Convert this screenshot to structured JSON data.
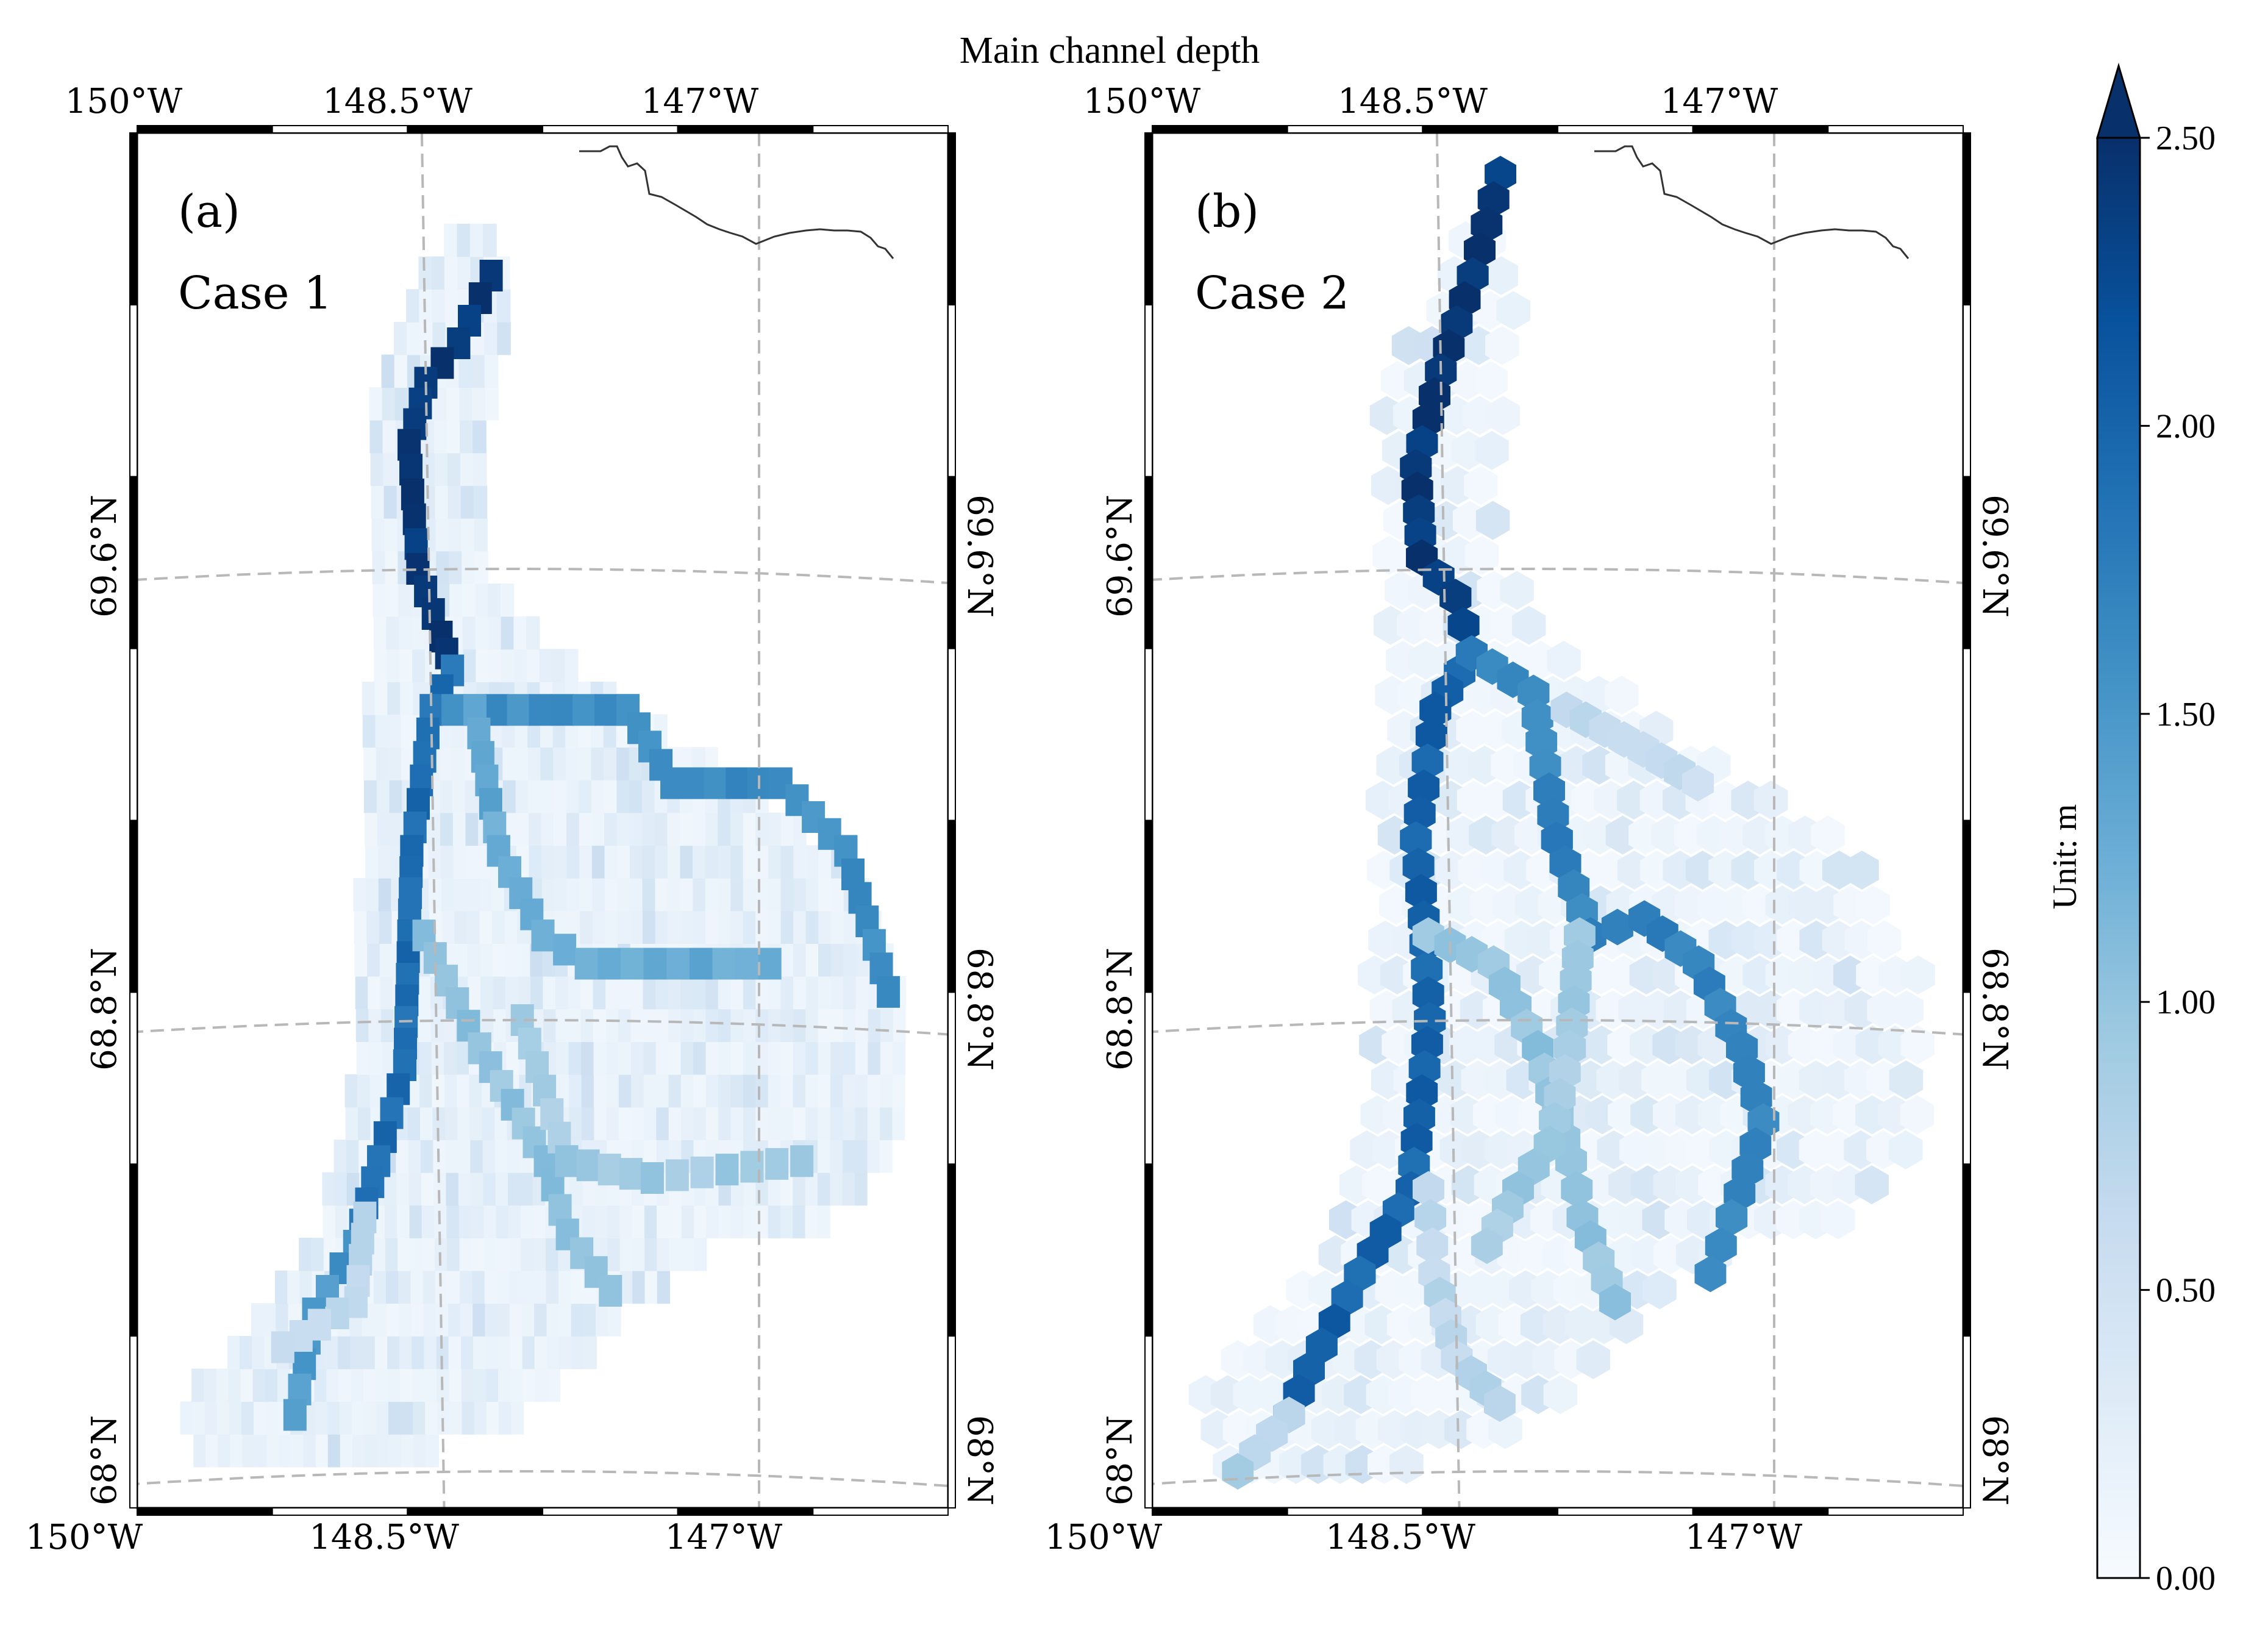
{
  "figure": {
    "title": "Main channel depth"
  },
  "colors": {
    "cmap": [
      "#f7fbff",
      "#deebf7",
      "#c6dbef",
      "#9ecae1",
      "#6baed6",
      "#4292c6",
      "#2171b5",
      "#08519c",
      "#08306b"
    ],
    "grid": "#b8b8b8",
    "coast": "#333333",
    "frame": "#000000"
  },
  "chart_data": [
    {
      "type": "heatmap",
      "panel_label": "(a)",
      "case_label": "Case 1",
      "cell_shape": "square",
      "x_axis": {
        "ticks_top": [
          "150°W",
          "148.5°W",
          "147°W"
        ],
        "ticks_bottom": [
          "150°W",
          "148.5°W",
          "147°W"
        ]
      },
      "y_axis": {
        "ticks_left": [
          "68°N",
          "68.8°N",
          "69.6°N"
        ],
        "ticks_right": [
          "68°N",
          "68.8°N",
          "69.6°N"
        ]
      },
      "channels": [
        {
          "depth": 2.4,
          "path": [
            [
              -148.2,
              70.12
            ],
            [
              -148.35,
              70.0
            ],
            [
              -148.5,
              69.93
            ],
            [
              -148.58,
              69.82
            ],
            [
              -148.55,
              69.6
            ],
            [
              -148.45,
              69.48
            ],
            [
              -148.4,
              69.42
            ]
          ]
        },
        {
          "depth": 1.9,
          "path": [
            [
              -148.4,
              69.42
            ],
            [
              -148.5,
              69.35
            ],
            [
              -148.6,
              69.1
            ],
            [
              -148.62,
              68.95
            ],
            [
              -148.65,
              68.72
            ],
            [
              -148.78,
              68.55
            ],
            [
              -148.9,
              68.4
            ]
          ]
        },
        {
          "depth": 1.5,
          "path": [
            [
              -148.9,
              68.4
            ],
            [
              -149.1,
              68.28
            ],
            [
              -149.2,
              68.1
            ]
          ]
        },
        {
          "depth": 1.6,
          "path": [
            [
              -148.4,
              69.35
            ],
            [
              -147.6,
              69.35
            ],
            [
              -147.4,
              69.22
            ],
            [
              -146.9,
              69.22
            ],
            [
              -146.6,
              69.1
            ],
            [
              -146.4,
              68.85
            ]
          ]
        },
        {
          "depth": 1.3,
          "path": [
            [
              -148.3,
              69.35
            ],
            [
              -148.2,
              69.1
            ],
            [
              -148.0,
              68.95
            ],
            [
              -147.8,
              68.9
            ],
            [
              -146.95,
              68.9
            ]
          ]
        },
        {
          "depth": 1.0,
          "path": [
            [
              -148.55,
              68.95
            ],
            [
              -148.3,
              68.75
            ],
            [
              -148.0,
              68.55
            ],
            [
              -147.9,
              68.42
            ],
            [
              -147.7,
              68.32
            ]
          ]
        },
        {
          "depth": 0.9,
          "path": [
            [
              -148.1,
              68.8
            ],
            [
              -147.9,
              68.55
            ],
            [
              -147.5,
              68.52
            ],
            [
              -146.8,
              68.55
            ]
          ]
        },
        {
          "depth": 0.7,
          "path": [
            [
              -148.85,
              68.45
            ],
            [
              -148.9,
              68.3
            ],
            [
              -149.25,
              68.22
            ]
          ]
        }
      ],
      "background_depth_range": [
        0.1,
        0.6
      ]
    },
    {
      "type": "heatmap",
      "panel_label": "(b)",
      "case_label": "Case 2",
      "cell_shape": "hexagon",
      "x_axis": {
        "ticks_top": [
          "150°W",
          "148.5°W",
          "147°W"
        ],
        "ticks_bottom": [
          "150°W",
          "148.5°W",
          "147°W"
        ]
      },
      "y_axis": {
        "ticks_left": [
          "68°N",
          "68.8°N",
          "69.6°N"
        ],
        "ticks_right": [
          "68°N",
          "68.8°N",
          "69.6°N"
        ]
      },
      "channels": [
        {
          "depth": 2.4,
          "path": [
            [
              -148.22,
              70.3
            ],
            [
              -148.35,
              70.12
            ],
            [
              -148.5,
              69.95
            ],
            [
              -148.62,
              69.78
            ],
            [
              -148.6,
              69.62
            ],
            [
              -148.45,
              69.55
            ],
            [
              -148.38,
              69.45
            ]
          ]
        },
        {
          "depth": 2.0,
          "path": [
            [
              -148.38,
              69.45
            ],
            [
              -148.55,
              69.35
            ],
            [
              -148.65,
              69.12
            ],
            [
              -148.62,
              68.98
            ],
            [
              -148.6,
              68.8
            ],
            [
              -148.7,
              68.5
            ],
            [
              -148.95,
              68.35
            ],
            [
              -149.2,
              68.18
            ],
            [
              -149.3,
              68.1
            ]
          ]
        },
        {
          "depth": 1.7,
          "path": [
            [
              -148.38,
              69.45
            ],
            [
              -148.1,
              69.38
            ],
            [
              -148.0,
              69.12
            ],
            [
              -147.85,
              68.95
            ],
            [
              -147.6,
              68.98
            ],
            [
              -147.35,
              68.9
            ],
            [
              -147.15,
              68.75
            ],
            [
              -147.05,
              68.62
            ],
            [
              -147.2,
              68.45
            ],
            [
              -147.3,
              68.35
            ]
          ]
        },
        {
          "depth": 1.0,
          "path": [
            [
              -148.6,
              68.95
            ],
            [
              -148.3,
              68.9
            ],
            [
              -148.1,
              68.75
            ],
            [
              -147.95,
              68.55
            ],
            [
              -147.9,
              68.45
            ],
            [
              -147.75,
              68.3
            ]
          ]
        },
        {
          "depth": 0.9,
          "path": [
            [
              -147.9,
              68.95
            ],
            [
              -147.95,
              68.75
            ],
            [
              -148.05,
              68.58
            ],
            [
              -148.2,
              68.5
            ],
            [
              -148.35,
              68.4
            ]
          ]
        },
        {
          "depth": 0.7,
          "path": [
            [
              -148.62,
              68.5
            ],
            [
              -148.6,
              68.35
            ],
            [
              -148.5,
              68.2
            ],
            [
              -148.3,
              68.12
            ]
          ]
        },
        {
          "depth": 0.8,
          "path": [
            [
              -149.3,
              68.1
            ],
            [
              -149.55,
              68.0
            ]
          ]
        },
        {
          "depth": 0.6,
          "path": [
            [
              -147.95,
              69.35
            ],
            [
              -147.6,
              69.28
            ],
            [
              -147.35,
              69.22
            ]
          ]
        }
      ],
      "background_depth_range": [
        0.05,
        0.55
      ]
    }
  ],
  "colorbar": {
    "label": "Unit: m",
    "min": 0.0,
    "max": 2.5,
    "extend": "max",
    "ticks": [
      "0.00",
      "0.50",
      "1.00",
      "1.50",
      "2.00",
      "2.50"
    ]
  }
}
